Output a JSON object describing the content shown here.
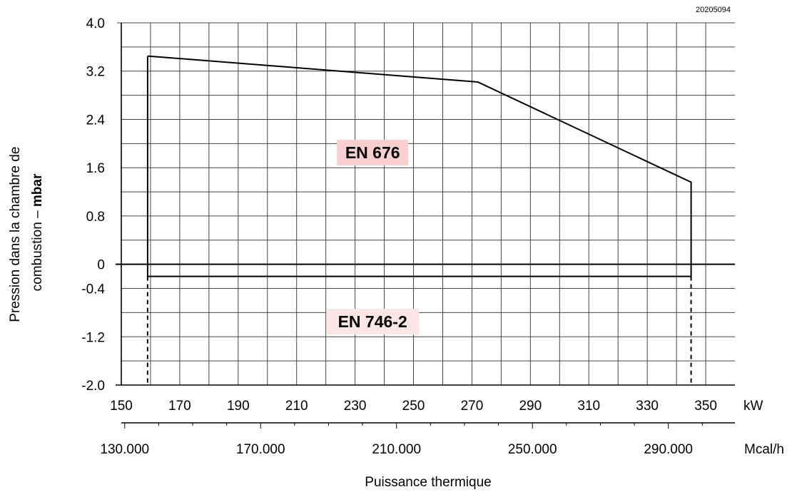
{
  "chart_data": {
    "type": "line",
    "code": "20205094",
    "ylabel_line1": "Pression dans la chambre de",
    "ylabel_line2_prefix": "combustion – ",
    "ylabel_line2_bold": "mbar",
    "xlabel": "Puissance thermique",
    "x_unit": "kW",
    "x2_unit": "Mcal/h",
    "xlim": [
      150,
      360
    ],
    "ylim": [
      -2.0,
      4.0
    ],
    "x_ticks": [
      "150",
      "170",
      "190",
      "210",
      "230",
      "250",
      "270",
      "290",
      "310",
      "330",
      "350"
    ],
    "y_ticks": [
      {
        "v": 4.0,
        "t": "4.0"
      },
      {
        "v": 3.2,
        "t": "3.2"
      },
      {
        "v": 2.4,
        "t": "2.4"
      },
      {
        "v": 1.6,
        "t": "1.6"
      },
      {
        "v": 0.8,
        "t": "0.8"
      },
      {
        "v": 0,
        "t": "0"
      },
      {
        "v": -0.4,
        "t": "-0.4"
      },
      {
        "v": -1.2,
        "t": "-1.2"
      },
      {
        "v": -2.0,
        "t": "-2.0"
      }
    ],
    "x2_ticks": [
      {
        "v": 130,
        "t": "130.000"
      },
      {
        "v": 170,
        "t": "170.000"
      },
      {
        "v": 210,
        "t": "210.000"
      },
      {
        "v": 250,
        "t": "250.000"
      },
      {
        "v": 290,
        "t": "290.000"
      }
    ],
    "series": [
      {
        "label": "EN 676",
        "points": [
          [
            159,
            3.45
          ],
          [
            159,
            -0.2
          ],
          [
            345,
            -0.2
          ],
          [
            345,
            1.36
          ],
          [
            272,
            3.02
          ],
          [
            159,
            3.45
          ]
        ]
      }
    ],
    "limit_lines": [
      {
        "x": 159,
        "y_from": -0.2,
        "y_to": -2.0,
        "style": "dashed"
      },
      {
        "x": 345,
        "y_from": -0.2,
        "y_to": -2.0,
        "style": "dashed"
      }
    ],
    "annotations": [
      {
        "text": "EN 676",
        "x": 236,
        "y": 1.85,
        "color": "#f9cfcf"
      },
      {
        "text": "EN 746-2",
        "x": 236,
        "y": -0.95,
        "color": "#fbe5e5"
      }
    ],
    "grid": true
  }
}
